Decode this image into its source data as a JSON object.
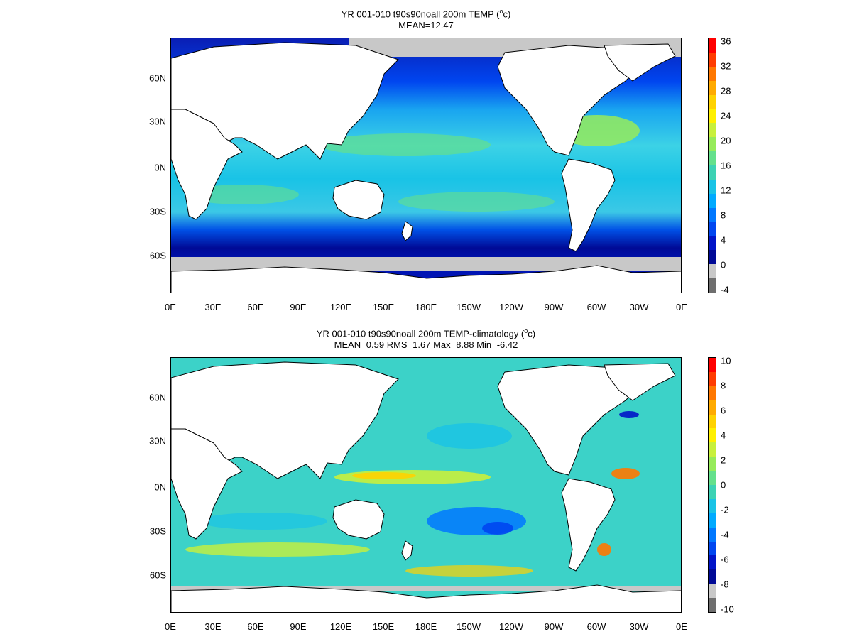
{
  "panels": [
    {
      "title_pre": "YR 001-010 t90s90noall 200m TEMP (",
      "title_sup": "o",
      "title_post": "c)",
      "subtitle": "MEAN=12.47",
      "colorbar": {
        "labels": [
          "36",
          "32",
          "28",
          "24",
          "20",
          "16",
          "12",
          "8",
          "4",
          "0",
          "-4"
        ],
        "colors": [
          "#ff0000",
          "#ff3c00",
          "#ff7800",
          "#ffaa00",
          "#ffd200",
          "#fff000",
          "#c8f03c",
          "#96eb5a",
          "#64e08c",
          "#3cd2b4",
          "#19c3e6",
          "#00aaff",
          "#0078ff",
          "#0046f0",
          "#0014c8",
          "#000a96",
          "#c8c8c8",
          "#6e6e6e"
        ]
      }
    },
    {
      "title_pre": "YR 001-010 t90s90noall 200m TEMP-climatology (",
      "title_sup": "o",
      "title_post": "c)",
      "subtitle": "MEAN=0.59   RMS=1.67   Max=8.88   Min=-6.42",
      "colorbar": {
        "labels": [
          "10",
          "8",
          "6",
          "4",
          "2",
          "0",
          "-2",
          "-4",
          "-6",
          "-8",
          "-10"
        ],
        "colors": [
          "#ff0000",
          "#ff3c00",
          "#ff7800",
          "#ffaa00",
          "#ffd200",
          "#fff000",
          "#c8f03c",
          "#96eb5a",
          "#64e08c",
          "#3cd2b4",
          "#19c3e6",
          "#00aaff",
          "#0078ff",
          "#0046f0",
          "#0014c8",
          "#000a96",
          "#c8c8c8",
          "#6e6e6e"
        ]
      }
    }
  ],
  "axes": {
    "x_ticks": [
      "0E",
      "30E",
      "60E",
      "90E",
      "120E",
      "150E",
      "180E",
      "150W",
      "120W",
      "90W",
      "60W",
      "30W",
      "0E"
    ],
    "y_ticks": [
      "60N",
      "30N",
      "0N",
      "30S",
      "60S"
    ]
  },
  "palette": {
    "land": "#ffffff",
    "ice": "#c8c8c8",
    "coast": "#000000"
  }
}
